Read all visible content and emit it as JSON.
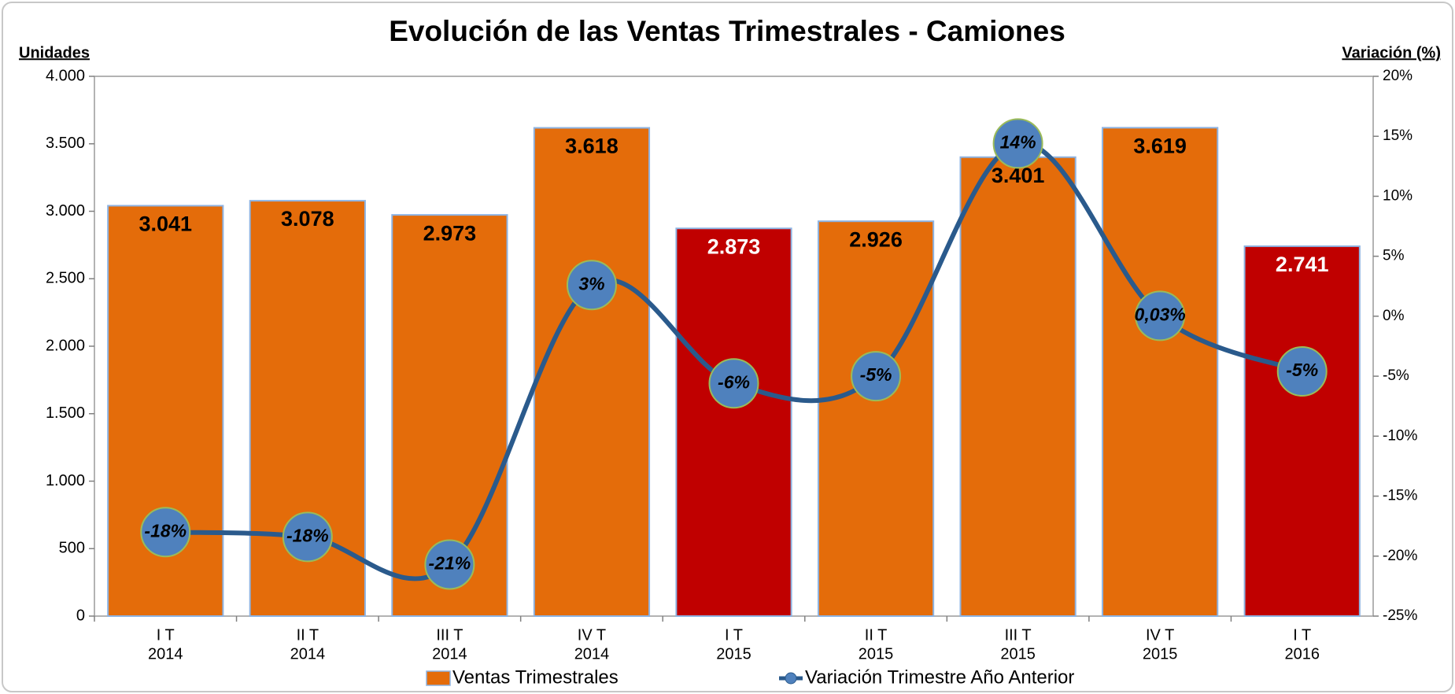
{
  "chart_data": {
    "type": "bar",
    "title": "Evolución de las Ventas Trimestrales - Camiones",
    "y_label": "Unidades",
    "y2_label": "Variación (%)",
    "categories": [
      [
        "I T",
        "2014"
      ],
      [
        "II T",
        "2014"
      ],
      [
        "III T",
        "2014"
      ],
      [
        "IV T",
        "2014"
      ],
      [
        "I T",
        "2015"
      ],
      [
        "II T",
        "2015"
      ],
      [
        "III T",
        "2015"
      ],
      [
        "IV T",
        "2015"
      ],
      [
        "I T",
        "2016"
      ]
    ],
    "ylim": [
      0,
      4000
    ],
    "yticks": [
      0,
      500,
      {
        "value": 1000,
        "label": "1.000"
      },
      {
        "value": 1500,
        "label": "1.500"
      },
      {
        "value": 2000,
        "label": "2.000"
      },
      {
        "value": 2500,
        "label": "2.500"
      },
      {
        "value": 3000,
        "label": "3.000"
      },
      {
        "value": 3500,
        "label": "3.500"
      },
      {
        "value": 4000,
        "label": "4.000"
      }
    ],
    "y2lim": [
      -25,
      20
    ],
    "y2ticks": [
      {
        "value": -25,
        "label": "-25%"
      },
      {
        "value": -20,
        "label": "-20%"
      },
      {
        "value": -15,
        "label": "-15%"
      },
      {
        "value": -10,
        "label": "-10%"
      },
      {
        "value": -5,
        "label": "-5%"
      },
      {
        "value": 0,
        "label": "0%"
      },
      {
        "value": 5,
        "label": "5%"
      },
      {
        "value": 10,
        "label": "10%"
      },
      {
        "value": 15,
        "label": "15%"
      },
      {
        "value": 20,
        "label": "20%"
      }
    ],
    "legend": "bottom",
    "series": [
      {
        "name": "Ventas Trimestrales",
        "type": "bar",
        "color": "#e46c0a",
        "colors": [
          "#e46c0a",
          "#e46c0a",
          "#e46c0a",
          "#e46c0a",
          "#c00000",
          "#e46c0a",
          "#e46c0a",
          "#e46c0a",
          "#c00000"
        ],
        "values": [
          3041,
          3078,
          2973,
          3618,
          2873,
          2926,
          3401,
          3619,
          2741
        ],
        "value_labels": [
          "3.041",
          "3.078",
          "2.973",
          "3.618",
          "2.873",
          "2.926",
          "3.401",
          "3.619",
          "2.741"
        ]
      },
      {
        "name": "Variación Trimestre Año Anterior",
        "type": "line",
        "axis": "y2",
        "color": "#2a5a8c",
        "values": [
          -18,
          -18.4,
          -20.7,
          2.6,
          -5.6,
          -5,
          14.4,
          0.03,
          -4.6
        ],
        "value_labels": [
          "-18%",
          "-18%",
          "-21%",
          "3%",
          "-6%",
          "-5%",
          "14%",
          "0,03%",
          "-5%"
        ]
      }
    ]
  }
}
